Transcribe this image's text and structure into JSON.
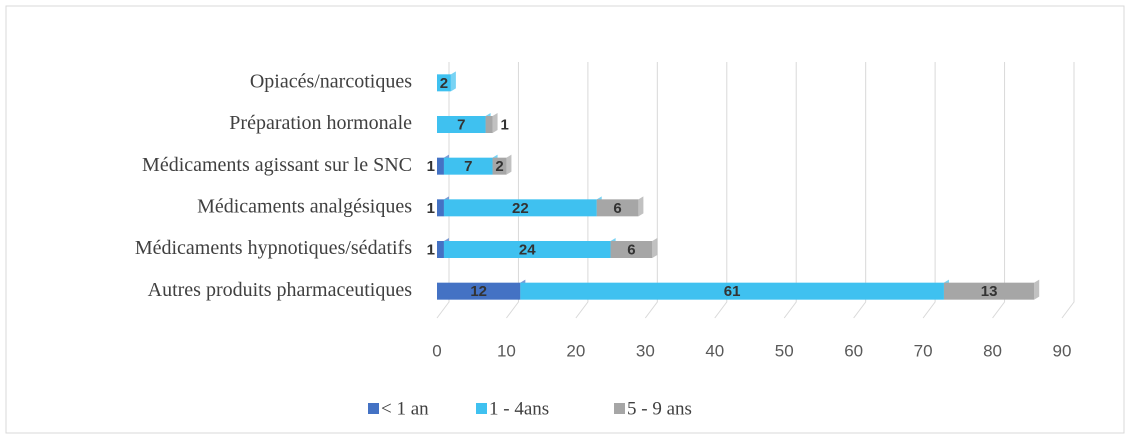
{
  "chart_data": {
    "type": "stacked_bar_horizontal",
    "categories": [
      "Opiacés/narcotiques",
      "Préparation hormonale",
      "Médicaments agissant sur le SNC",
      "Médicaments analgésiques",
      "Médicaments hypnotiques/sédatifs",
      "Autres produits pharmaceutiques"
    ],
    "series": [
      {
        "name": "< 1 an",
        "color": "#4472c4",
        "values": [
          null,
          null,
          1,
          1,
          1,
          12
        ]
      },
      {
        "name": "1 - 4ans",
        "color": "#3fc1f0",
        "values": [
          2,
          7,
          7,
          22,
          24,
          61
        ]
      },
      {
        "name": "5 - 9 ans",
        "color": "#a6a6a6",
        "values": [
          null,
          1,
          2,
          6,
          6,
          13
        ]
      }
    ],
    "xlim": [
      0,
      90
    ],
    "xticks": [
      0,
      10,
      20,
      30,
      40,
      50,
      60,
      70,
      80,
      90
    ],
    "grid": true,
    "legend": "bottom"
  }
}
